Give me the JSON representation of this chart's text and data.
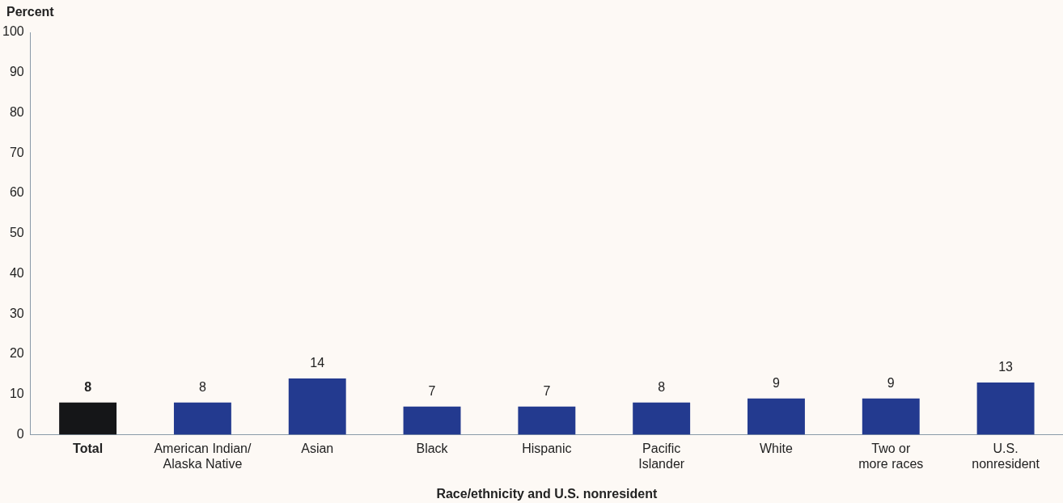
{
  "chart_data": {
    "type": "bar",
    "ylabel": "Percent",
    "xlabel": "Race/ethnicity and U.S. nonresident",
    "categories": [
      "Total",
      "American Indian/\nAlaska Native",
      "Asian",
      "Black",
      "Hispanic",
      "Pacific\nIslander",
      "White",
      "Two or\nmore races",
      "U.S.\nnonresident"
    ],
    "values": [
      8,
      8,
      14,
      7,
      7,
      8,
      9,
      9,
      13
    ],
    "colors": [
      "#151618",
      "#233a8f",
      "#233a8f",
      "#233a8f",
      "#233a8f",
      "#233a8f",
      "#233a8f",
      "#233a8f",
      "#233a8f"
    ],
    "ylim": [
      0,
      100
    ],
    "yticks": [
      0,
      10,
      20,
      30,
      40,
      50,
      60,
      70,
      80,
      90,
      100
    ],
    "grid": false,
    "legend": false,
    "data_labels": true
  }
}
